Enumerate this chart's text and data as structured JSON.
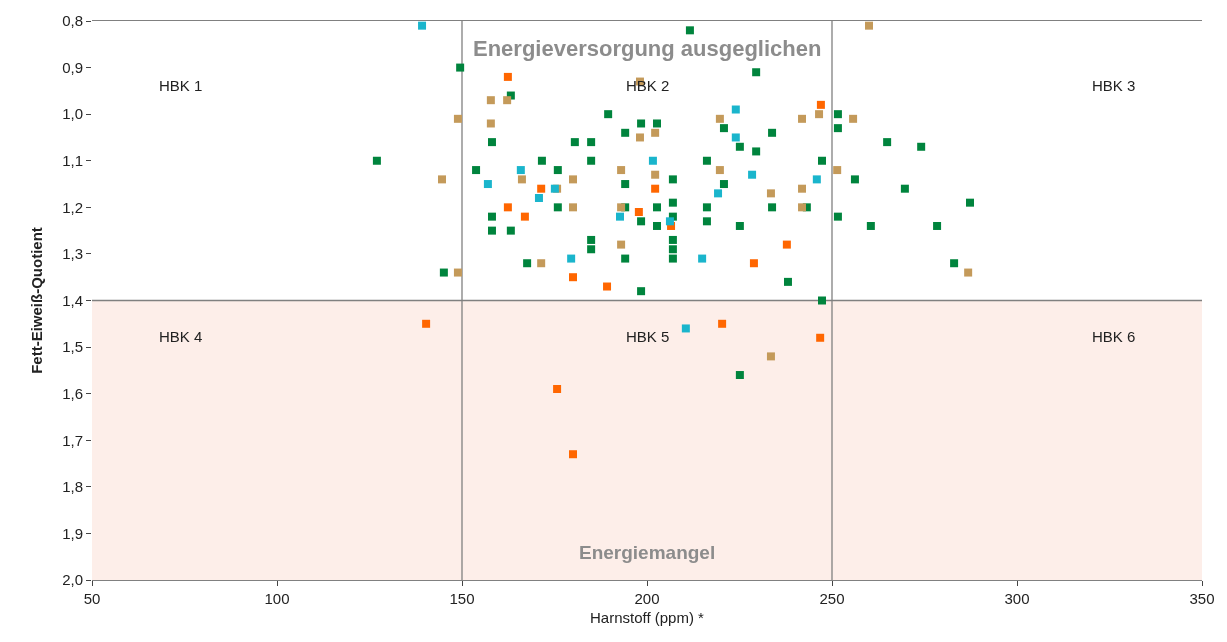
{
  "chart_data": {
    "type": "scatter",
    "xlabel": "Harnstoff (ppm) *",
    "ylabel": "Fett-Eiweiß-Quotient",
    "annotations": [
      "Energieversorgung ausgeglichen",
      "Energiemangel",
      "HBK 1",
      "HBK 2",
      "HBK 3",
      "HBK 4",
      "HBK 5",
      "HBK 6"
    ],
    "xlim": [
      50,
      350
    ],
    "xticks": [
      50,
      100,
      150,
      200,
      250,
      300,
      350
    ],
    "ylim": [
      2.0,
      0.8
    ],
    "yticks": [
      {
        "value": 0.8,
        "label": "0,8"
      },
      {
        "value": 0.9,
        "label": "0,9"
      },
      {
        "value": 1.0,
        "label": "1,0"
      },
      {
        "value": 1.1,
        "label": "1,1"
      },
      {
        "value": 1.2,
        "label": "1,2"
      },
      {
        "value": 1.3,
        "label": "1,3"
      },
      {
        "value": 1.4,
        "label": "1,4"
      },
      {
        "value": 1.5,
        "label": "1,5"
      },
      {
        "value": 1.6,
        "label": "1,6"
      },
      {
        "value": 1.7,
        "label": "1,7"
      },
      {
        "value": 1.8,
        "label": "1,8"
      },
      {
        "value": 1.9,
        "label": "1,9"
      },
      {
        "value": 2.0,
        "label": "2,0"
      }
    ],
    "grid": false,
    "marker": "square",
    "bands": [
      {
        "axis": "y",
        "from": 1.4,
        "to": 2.0,
        "color": "#fdeee9"
      }
    ],
    "ref_lines": [
      {
        "axis": "x",
        "value": 150,
        "color": "#808080"
      },
      {
        "axis": "x",
        "value": 250,
        "color": "#808080"
      },
      {
        "axis": "y",
        "value": 1.4,
        "color": "#808080"
      }
    ],
    "series": [
      {
        "color": "#00843d",
        "x": [
          149.5,
          163.2,
          189.5,
          198.4,
          202.7,
          158.1,
          180.5,
          184.9,
          194.1,
          127,
          171.6,
          184.9,
          153.8,
          175.9,
          194.1,
          175.9,
          194.1,
          202.7,
          158.1,
          198.4,
          202.7,
          158.1,
          163.2,
          184.9,
          184.9,
          194.1,
          167.6,
          145.1,
          198.4,
          211.6,
          229.5,
          251.6,
          251.6,
          220.8,
          233.8,
          264.9,
          225.1,
          229.5,
          274.1,
          247.3,
          216.2,
          207,
          220.8,
          256.2,
          269.7,
          207,
          216.2,
          233.8,
          243.2,
          207,
          216.2,
          251.6,
          225.1,
          260.5,
          278.4,
          207,
          207,
          207,
          238.1,
          247.3,
          287.3,
          283,
          225.1
        ],
        "values": [
          0.9,
          0.96,
          1.0,
          1.02,
          1.02,
          1.06,
          1.06,
          1.06,
          1.04,
          1.1,
          1.1,
          1.1,
          1.12,
          1.12,
          1.15,
          1.2,
          1.2,
          1.2,
          1.22,
          1.23,
          1.24,
          1.25,
          1.25,
          1.27,
          1.29,
          1.31,
          1.32,
          1.34,
          1.38,
          0.82,
          0.91,
          1.0,
          1.03,
          1.03,
          1.04,
          1.06,
          1.07,
          1.08,
          1.07,
          1.1,
          1.1,
          1.14,
          1.15,
          1.14,
          1.16,
          1.19,
          1.2,
          1.2,
          1.2,
          1.22,
          1.23,
          1.22,
          1.24,
          1.24,
          1.24,
          1.27,
          1.29,
          1.31,
          1.36,
          1.4,
          1.19,
          1.32,
          1.56
        ]
      },
      {
        "color": "#ff6600",
        "x": [
          162.4,
          171.4,
          162.4,
          167,
          180,
          189.2,
          197.8,
          202.2,
          247,
          206.5,
          237.8,
          228.9,
          140.3,
          175.7,
          180,
          220.3,
          246.8
        ],
        "values": [
          0.92,
          1.16,
          1.2,
          1.22,
          1.35,
          1.37,
          1.21,
          1.16,
          0.98,
          1.24,
          1.28,
          1.32,
          1.45,
          1.59,
          1.73,
          1.45,
          1.48
        ]
      },
      {
        "color": "#1ab5cc",
        "x": [
          139.2,
          165.9,
          157,
          170.8,
          175.1,
          179.5,
          192.7,
          201.6,
          224,
          224,
          228.4,
          245.9,
          219.2,
          206.2,
          214.9,
          210.5
        ],
        "values": [
          0.81,
          1.12,
          1.15,
          1.18,
          1.16,
          1.31,
          1.22,
          1.1,
          0.99,
          1.05,
          1.13,
          1.14,
          1.17,
          1.23,
          1.31,
          1.46
        ]
      },
      {
        "color": "#c49a5a",
        "x": [
          198.1,
          157.8,
          162.2,
          148.9,
          157.8,
          198.1,
          202.2,
          144.6,
          166.2,
          180,
          193,
          175.7,
          202.2,
          180,
          193,
          193,
          171.4,
          148.9,
          260,
          219.7,
          241.9,
          246.5,
          255.7,
          219.7,
          251.4,
          233.5,
          241.9,
          241.9,
          286.8,
          233.5
        ],
        "values": [
          0.93,
          0.97,
          0.97,
          1.01,
          1.02,
          1.05,
          1.04,
          1.14,
          1.14,
          1.14,
          1.12,
          1.16,
          1.13,
          1.2,
          1.2,
          1.28,
          1.32,
          1.34,
          0.81,
          1.01,
          1.01,
          1.0,
          1.01,
          1.12,
          1.12,
          1.17,
          1.16,
          1.2,
          1.34,
          1.52
        ]
      }
    ]
  }
}
